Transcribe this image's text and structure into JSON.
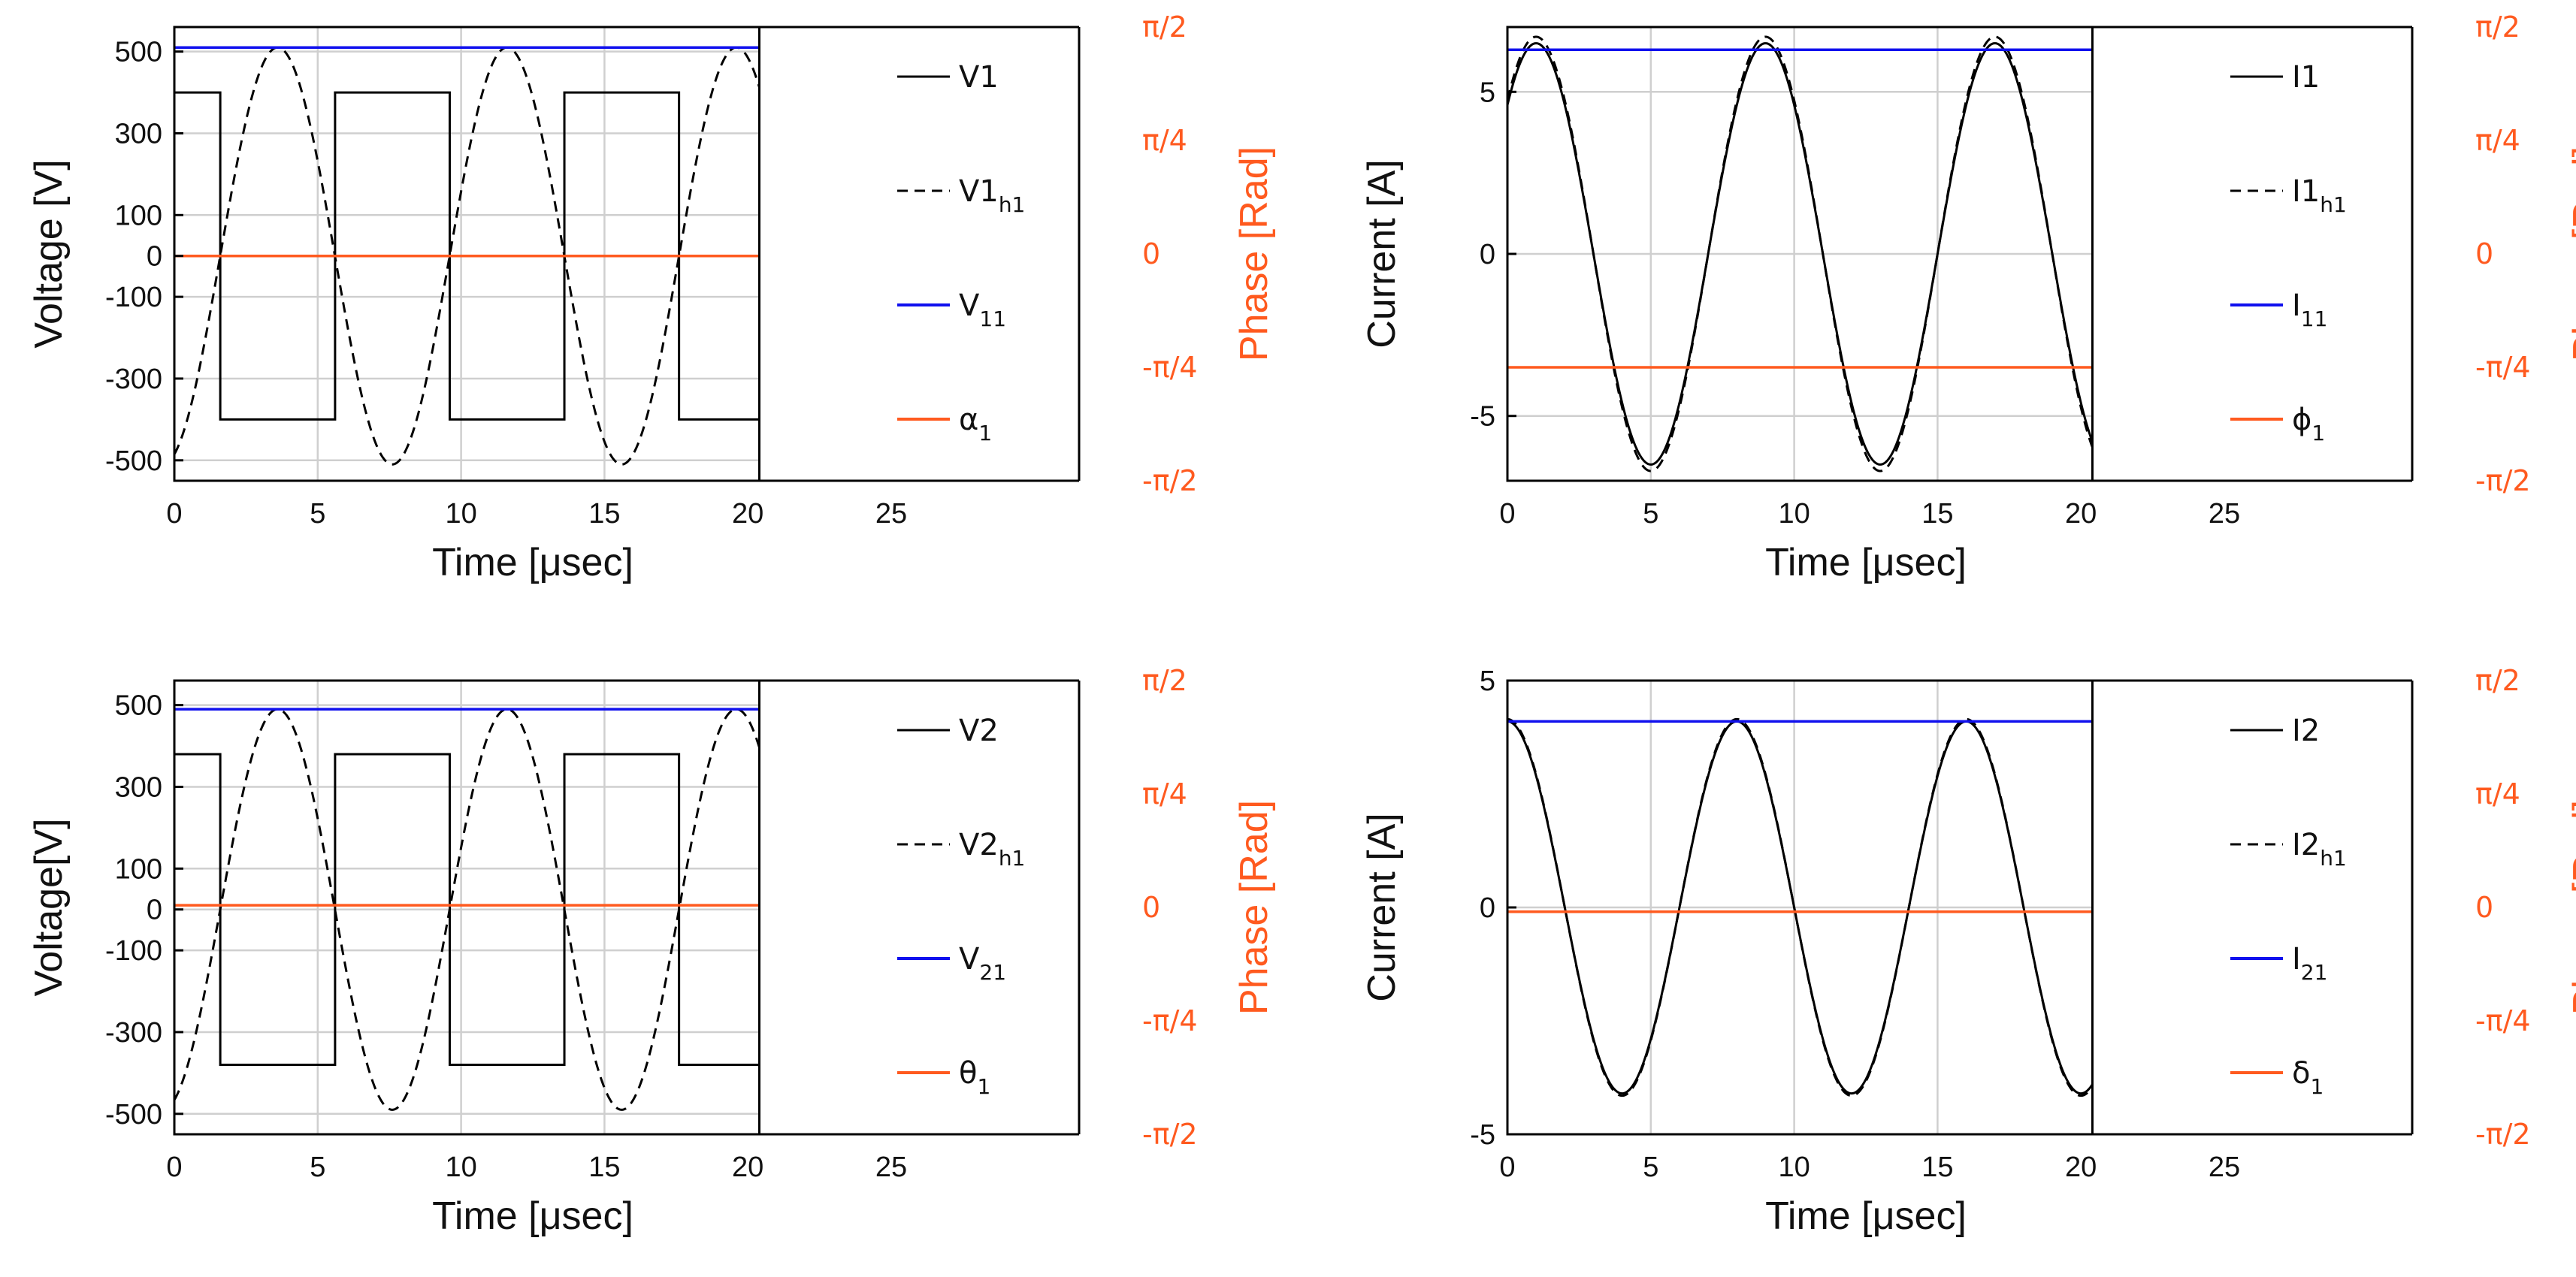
{
  "colors": {
    "fundamental": "#1010ee",
    "phase": "#ff5a1f",
    "signal": "#000000",
    "grid": "#cfcfcf",
    "phase_axis": "#ff5a1f"
  },
  "chart_data": [
    {
      "id": "v1",
      "type": "line",
      "title": "",
      "xlabel": "Time [μsec]",
      "ylabel": "Voltage [V]",
      "y2label": "Phase [Rad]",
      "xlim": [
        0,
        25
      ],
      "ylim": [
        -550,
        560
      ],
      "xticks": [
        0,
        5,
        10,
        15,
        20,
        25
      ],
      "yticks": [
        500,
        300,
        100,
        0,
        -100,
        -300,
        -500
      ],
      "xgrid": [
        5,
        10,
        15
      ],
      "y2ticks": [
        {
          "label": "π/2",
          "value": 1.5708
        },
        {
          "label": "π/4",
          "value": 0.7854
        },
        {
          "label": "0",
          "value": 0
        },
        {
          "label": "-π/4",
          "value": -0.7854
        },
        {
          "label": "-π/2",
          "value": -1.5708
        }
      ],
      "y2lim": [
        -1.5708,
        1.5708
      ],
      "plot_xmax": 20.4,
      "series": [
        {
          "name": "V1",
          "kind": "square",
          "amplitude": 400,
          "period": 8,
          "shift": 1.6,
          "sign": 1,
          "style": "solid",
          "color": "#000000",
          "legend": "V1",
          "legend_sub": ""
        },
        {
          "name": "V1h1",
          "kind": "sine",
          "amplitude": 510,
          "period": 8,
          "shift": 1.6,
          "sign": 1,
          "style": "dashed",
          "color": "#000000",
          "legend": "V1",
          "legend_sub": "h1"
        },
        {
          "name": "V11",
          "kind": "const",
          "value": 510,
          "axis": "left",
          "style": "solid",
          "color": "#1010ee",
          "legend": "V",
          "legend_sub": "11"
        },
        {
          "name": "alpha1",
          "kind": "const",
          "value": 0,
          "axis": "left",
          "style": "solid",
          "color": "#ff5a1f",
          "legend": "α",
          "legend_sub": "1"
        }
      ]
    },
    {
      "id": "i1",
      "type": "line",
      "title": "",
      "xlabel": "Time [μsec]",
      "ylabel": "Current [A]",
      "y2label": "Phase [Rad]",
      "xlim": [
        0,
        25
      ],
      "ylim": [
        -7,
        7
      ],
      "xticks": [
        0,
        5,
        10,
        15,
        20,
        25
      ],
      "yticks": [
        5,
        0,
        -5
      ],
      "xgrid": [
        5,
        10,
        15
      ],
      "y2ticks": [
        {
          "label": "π/2",
          "value": 1.5708
        },
        {
          "label": "π/4",
          "value": 0.7854
        },
        {
          "label": "0",
          "value": 0
        },
        {
          "label": "-π/4",
          "value": -0.7854
        },
        {
          "label": "-π/2",
          "value": -1.5708
        }
      ],
      "y2lim": [
        -1.5708,
        1.5708
      ],
      "plot_xmax": 20.4,
      "series": [
        {
          "name": "I1",
          "kind": "sine",
          "amplitude": 6.5,
          "period": 8,
          "shift": 3.0,
          "sign": -1,
          "style": "solid",
          "color": "#000000",
          "legend": "I1",
          "legend_sub": ""
        },
        {
          "name": "I1h1",
          "kind": "sine",
          "amplitude": 6.7,
          "period": 8,
          "shift": 3.0,
          "sign": -1,
          "style": "dashed",
          "color": "#000000",
          "legend": "I1",
          "legend_sub": "h1"
        },
        {
          "name": "I11",
          "kind": "const",
          "value": 6.3,
          "axis": "left",
          "style": "solid",
          "color": "#1010ee",
          "legend": "I",
          "legend_sub": "11"
        },
        {
          "name": "phi1",
          "kind": "const",
          "value": -0.7854,
          "axis": "right",
          "style": "solid",
          "color": "#ff5a1f",
          "legend": "ϕ",
          "legend_sub": "1"
        }
      ]
    },
    {
      "id": "v2",
      "type": "line",
      "title": "",
      "xlabel": "Time [μsec]",
      "ylabel": "Voltage[V]",
      "y2label": "Phase [Rad]",
      "xlim": [
        0,
        25
      ],
      "ylim": [
        -550,
        560
      ],
      "xticks": [
        0,
        5,
        10,
        15,
        20,
        25
      ],
      "yticks": [
        500,
        300,
        100,
        0,
        -100,
        -300,
        -500
      ],
      "xgrid": [
        5,
        10,
        15
      ],
      "y2ticks": [
        {
          "label": "π/2",
          "value": 1.5708
        },
        {
          "label": "π/4",
          "value": 0.7854
        },
        {
          "label": "0",
          "value": 0
        },
        {
          "label": "-π/4",
          "value": -0.7854
        },
        {
          "label": "-π/2",
          "value": -1.5708
        }
      ],
      "y2lim": [
        -1.5708,
        1.5708
      ],
      "plot_xmax": 20.4,
      "series": [
        {
          "name": "V2",
          "kind": "square",
          "amplitude": 380,
          "period": 8,
          "shift": 1.6,
          "sign": 1,
          "style": "solid",
          "color": "#000000",
          "legend": "V2",
          "legend_sub": ""
        },
        {
          "name": "V2h1",
          "kind": "sine",
          "amplitude": 490,
          "period": 8,
          "shift": 1.6,
          "sign": 1,
          "style": "dashed",
          "color": "#000000",
          "legend": "V2",
          "legend_sub": "h1"
        },
        {
          "name": "V21",
          "kind": "const",
          "value": 490,
          "axis": "left",
          "style": "solid",
          "color": "#1010ee",
          "legend": "V",
          "legend_sub": "21"
        },
        {
          "name": "theta1",
          "kind": "const",
          "value": 0.015,
          "axis": "right",
          "style": "solid",
          "color": "#ff5a1f",
          "legend": "θ",
          "legend_sub": "1"
        }
      ]
    },
    {
      "id": "i2",
      "type": "line",
      "title": "",
      "xlabel": "Time [μsec]",
      "ylabel": "Current [A]",
      "y2label": "Phase [Rad]",
      "xlim": [
        0,
        25
      ],
      "ylim": [
        -5,
        5
      ],
      "xticks": [
        0,
        5,
        10,
        15,
        20,
        25
      ],
      "yticks": [
        5,
        0,
        -5
      ],
      "xgrid": [
        5,
        10,
        15
      ],
      "y2ticks": [
        {
          "label": "π/2",
          "value": 1.5708
        },
        {
          "label": "π/4",
          "value": 0.7854
        },
        {
          "label": "0",
          "value": 0
        },
        {
          "label": "-π/4",
          "value": -0.7854
        },
        {
          "label": "-π/2",
          "value": -1.5708
        }
      ],
      "y2lim": [
        -1.5708,
        1.5708
      ],
      "plot_xmax": 20.4,
      "series": [
        {
          "name": "I2",
          "kind": "sine",
          "amplitude": 4.1,
          "period": 8,
          "shift": 2.0,
          "sign": -1,
          "style": "solid",
          "color": "#000000",
          "legend": "I2",
          "legend_sub": ""
        },
        {
          "name": "I2h1",
          "kind": "sine",
          "amplitude": 4.15,
          "period": 8,
          "shift": 2.0,
          "sign": -1,
          "style": "dashed",
          "color": "#000000",
          "legend": "I2",
          "legend_sub": "h1"
        },
        {
          "name": "I21",
          "kind": "const",
          "value": 4.1,
          "axis": "left",
          "style": "solid",
          "color": "#1010ee",
          "legend": "I",
          "legend_sub": "21"
        },
        {
          "name": "delta1",
          "kind": "const",
          "value": -0.03,
          "axis": "right",
          "style": "solid",
          "color": "#ff5a1f",
          "legend": "δ",
          "legend_sub": "1"
        }
      ]
    }
  ]
}
